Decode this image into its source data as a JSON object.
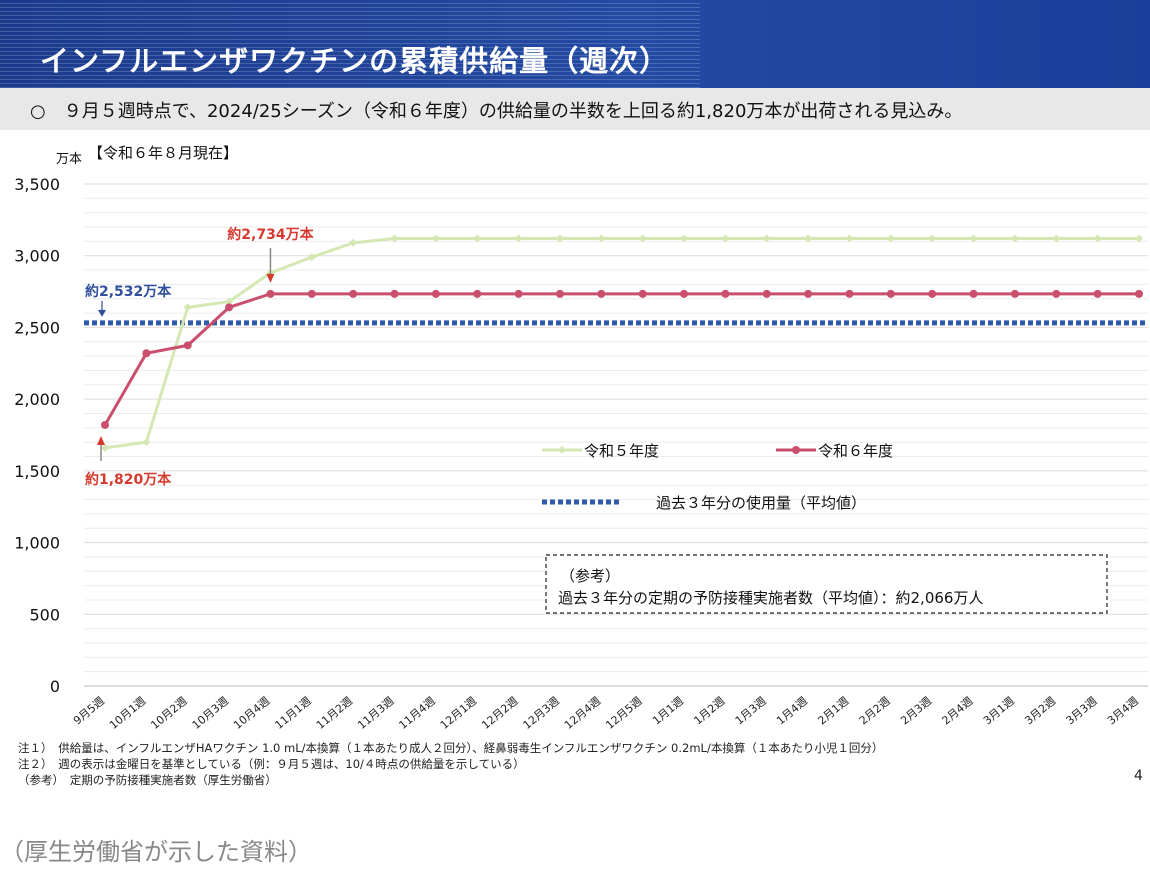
{
  "header": {
    "title": "インフルエンザワクチンの累積供給量（週次）"
  },
  "summary": {
    "text": "○　９月５週時点で、2024/25シーズン（令和６年度）の供給量の半数を上回る約1,820万本が出荷される見込み。"
  },
  "as_of": "【令和６年８月現在】",
  "colors": {
    "header_bg": "#1f44a0",
    "series_r5": "#d4e8b4",
    "series_r6": "#c94f6d",
    "avg_line": "#2f5ba8",
    "annotation_red": "#d63a2f",
    "annotation_blue": "#2f4f9a"
  },
  "chart_data": {
    "type": "line",
    "ylabel": "万本",
    "ylim": [
      0,
      3500
    ],
    "yticks": [
      0,
      500,
      1000,
      1500,
      2000,
      2500,
      3000,
      3500
    ],
    "ytick_labels": [
      "0",
      "500",
      "1,000",
      "1,500",
      "2,000",
      "2,500",
      "3,000",
      "3,500"
    ],
    "grid": true,
    "categories": [
      "9月5週",
      "10月1週",
      "10月2週",
      "10月3週",
      "10月4週",
      "11月1週",
      "11月2週",
      "11月3週",
      "11月4週",
      "12月1週",
      "12月2週",
      "12月3週",
      "12月4週",
      "12月5週",
      "1月1週",
      "1月2週",
      "1月3週",
      "1月4週",
      "2月1週",
      "2月2週",
      "2月3週",
      "2月4週",
      "3月1週",
      "3月2週",
      "3月3週",
      "3月4週"
    ],
    "series": [
      {
        "name": "令和５年度",
        "values": [
          1660,
          1700,
          2640,
          2680,
          2880,
          2990,
          3090,
          3120,
          3120,
          3120,
          3120,
          3120,
          3120,
          3120,
          3120,
          3120,
          3120,
          3120,
          3120,
          3120,
          3120,
          3120,
          3120,
          3120,
          3120,
          3120
        ]
      },
      {
        "name": "令和６年度",
        "values": [
          1820,
          2320,
          2375,
          2640,
          2734,
          2734,
          2734,
          2734,
          2734,
          2734,
          2734,
          2734,
          2734,
          2734,
          2734,
          2734,
          2734,
          2734,
          2734,
          2734,
          2734,
          2734,
          2734,
          2734,
          2734,
          2734
        ]
      }
    ],
    "reference_line": {
      "name": "過去３年分の使用量（平均値）",
      "value": 2532
    },
    "annotations": [
      {
        "text": "約2,734万本",
        "category": "10月4週",
        "value": 2734
      },
      {
        "text": "約2,532万本",
        "category": "9月5週",
        "value": 2532
      },
      {
        "text": "約1,820万本",
        "category": "9月5週",
        "value": 1820
      }
    ],
    "reference_box": {
      "title": "（参考）",
      "text": "過去３年分の定期の予防接種実施者数（平均値）：約2,066万人"
    }
  },
  "notes": [
    "注１）　供給量は、インフルエンザHAワクチン 1.0 mL/本換算（１本あたり成人２回分）、経鼻弱毒生インフルエンザワクチン 0.2mL/本換算（１本あたり小児１回分）",
    "注２）　週の表示は金曜日を基準としている（例：９月５週は、10/４時点の供給量を示している）",
    "（参考）　定期の予防接種実施者数（厚生労働省）"
  ],
  "page_number": "4",
  "caption": "（厚生労働省が示した資料）"
}
